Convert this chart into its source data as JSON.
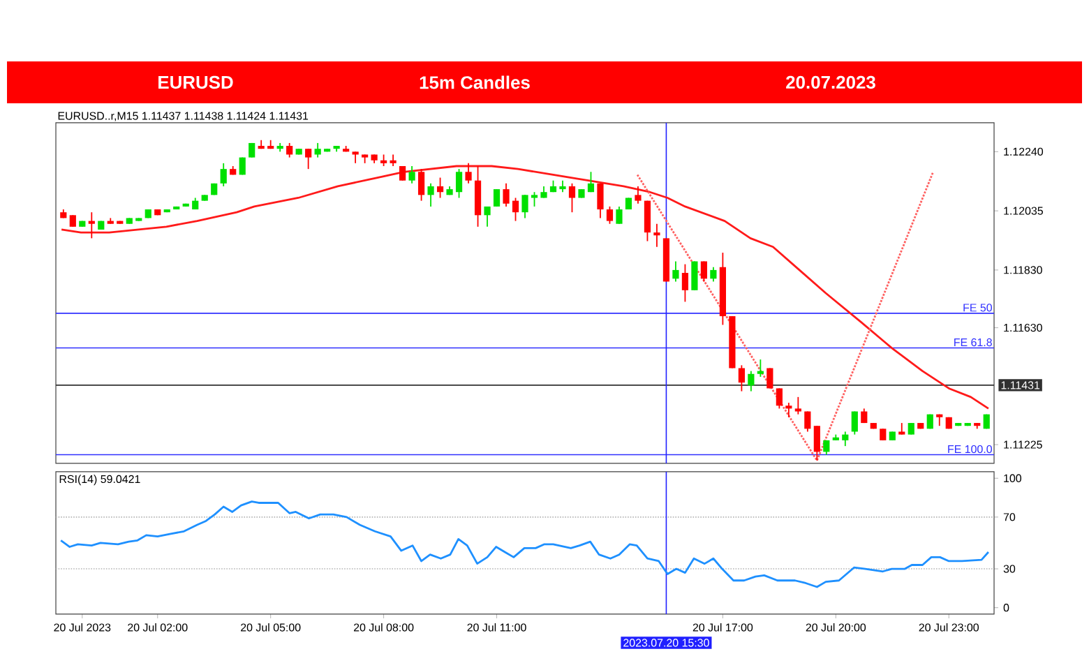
{
  "chart_data": [
    {
      "type": "candlestick",
      "title": "EURUSD",
      "subtitle": "15m Candles",
      "annotations": [
        "20.07.2023",
        "EURUSD..r,M15 1.11437 1.11438 1.11424 1.11431"
      ],
      "x": [
        "2023-07-19T23:30",
        "2023-07-19T23:45",
        "2023-07-20T00:00",
        "2023-07-20T00:15",
        "2023-07-20T00:30",
        "2023-07-20T00:45",
        "2023-07-20T01:00",
        "2023-07-20T01:15",
        "2023-07-20T01:30",
        "2023-07-20T01:45",
        "2023-07-20T02:00",
        "2023-07-20T02:15",
        "2023-07-20T02:30",
        "2023-07-20T02:45",
        "2023-07-20T03:00",
        "2023-07-20T03:15",
        "2023-07-20T03:30",
        "2023-07-20T03:45",
        "2023-07-20T04:00",
        "2023-07-20T04:15",
        "2023-07-20T04:30",
        "2023-07-20T04:45",
        "2023-07-20T05:00",
        "2023-07-20T05:15",
        "2023-07-20T05:30",
        "2023-07-20T05:45",
        "2023-07-20T06:00",
        "2023-07-20T06:15",
        "2023-07-20T06:30",
        "2023-07-20T06:45",
        "2023-07-20T07:00",
        "2023-07-20T07:15",
        "2023-07-20T07:30",
        "2023-07-20T07:45",
        "2023-07-20T08:00",
        "2023-07-20T08:15",
        "2023-07-20T08:30",
        "2023-07-20T08:45",
        "2023-07-20T09:00",
        "2023-07-20T09:15",
        "2023-07-20T09:30",
        "2023-07-20T09:45",
        "2023-07-20T10:00",
        "2023-07-20T10:15",
        "2023-07-20T10:30",
        "2023-07-20T10:45",
        "2023-07-20T11:00",
        "2023-07-20T11:15",
        "2023-07-20T11:30",
        "2023-07-20T11:45",
        "2023-07-20T12:00",
        "2023-07-20T12:15",
        "2023-07-20T12:30",
        "2023-07-20T12:45",
        "2023-07-20T13:00",
        "2023-07-20T13:15",
        "2023-07-20T13:30",
        "2023-07-20T13:45",
        "2023-07-20T14:00",
        "2023-07-20T14:15",
        "2023-07-20T14:30",
        "2023-07-20T14:45",
        "2023-07-20T15:00",
        "2023-07-20T15:15",
        "2023-07-20T15:30",
        "2023-07-20T15:45",
        "2023-07-20T16:00",
        "2023-07-20T16:15",
        "2023-07-20T16:30",
        "2023-07-20T16:45",
        "2023-07-20T17:00",
        "2023-07-20T17:15",
        "2023-07-20T17:30",
        "2023-07-20T17:45",
        "2023-07-20T18:00",
        "2023-07-20T18:15",
        "2023-07-20T18:30",
        "2023-07-20T18:45",
        "2023-07-20T19:00",
        "2023-07-20T19:15",
        "2023-07-20T19:30",
        "2023-07-20T19:45",
        "2023-07-20T20:00",
        "2023-07-20T20:15",
        "2023-07-20T20:30",
        "2023-07-20T20:45",
        "2023-07-20T21:00",
        "2023-07-20T21:15",
        "2023-07-20T21:30",
        "2023-07-20T21:45",
        "2023-07-20T22:00",
        "2023-07-20T22:15",
        "2023-07-20T22:30",
        "2023-07-20T22:45",
        "2023-07-20T23:00",
        "2023-07-20T23:15",
        "2023-07-20T23:30",
        "2023-07-20T23:45",
        "2023-07-21T00:00"
      ],
      "ohlc": [
        [
          1.1203,
          1.1204,
          1.1201,
          1.1201
        ],
        [
          1.1202,
          1.1202,
          1.1198,
          1.1198
        ],
        [
          1.1198,
          1.12,
          1.1198,
          1.12
        ],
        [
          1.12,
          1.1203,
          1.1194,
          1.1199
        ],
        [
          1.1197,
          1.12,
          1.1197,
          1.12
        ],
        [
          1.12,
          1.1201,
          1.1199,
          1.1199
        ],
        [
          1.12,
          1.12,
          1.1199,
          1.1199
        ],
        [
          1.1199,
          1.1201,
          1.1199,
          1.1201
        ],
        [
          1.12,
          1.1201,
          1.12,
          1.1201
        ],
        [
          1.1201,
          1.1204,
          1.1201,
          1.1204
        ],
        [
          1.1204,
          1.1204,
          1.1202,
          1.1202
        ],
        [
          1.1203,
          1.1204,
          1.1203,
          1.1204
        ],
        [
          1.1204,
          1.1205,
          1.1204,
          1.1205
        ],
        [
          1.1205,
          1.1206,
          1.1205,
          1.1206
        ],
        [
          1.1204,
          1.1208,
          1.1204,
          1.1207
        ],
        [
          1.1207,
          1.1209,
          1.1207,
          1.1209
        ],
        [
          1.1209,
          1.1213,
          1.1209,
          1.1213
        ],
        [
          1.1213,
          1.122,
          1.1212,
          1.1218
        ],
        [
          1.1218,
          1.1219,
          1.1216,
          1.1216
        ],
        [
          1.1216,
          1.1222,
          1.1216,
          1.1222
        ],
        [
          1.1222,
          1.1227,
          1.1222,
          1.1227
        ],
        [
          1.1226,
          1.1228,
          1.1225,
          1.1225
        ],
        [
          1.1226,
          1.1228,
          1.1225,
          1.1225
        ],
        [
          1.1225,
          1.1227,
          1.1224,
          1.1226
        ],
        [
          1.1226,
          1.1227,
          1.1222,
          1.1223
        ],
        [
          1.1223,
          1.1225,
          1.1223,
          1.1225
        ],
        [
          1.1225,
          1.1225,
          1.1218,
          1.1222
        ],
        [
          1.1223,
          1.1227,
          1.1222,
          1.1225
        ],
        [
          1.1224,
          1.1225,
          1.1224,
          1.1225
        ],
        [
          1.1225,
          1.1226,
          1.1224,
          1.1226
        ],
        [
          1.1225,
          1.1226,
          1.1224,
          1.1224
        ],
        [
          1.1224,
          1.1224,
          1.122,
          1.1223
        ],
        [
          1.1223,
          1.1223,
          1.122,
          1.1222
        ],
        [
          1.1223,
          1.1223,
          1.122,
          1.1221
        ],
        [
          1.1221,
          1.1223,
          1.1219,
          1.122
        ],
        [
          1.1221,
          1.1223,
          1.1219,
          1.122
        ],
        [
          1.1219,
          1.1219,
          1.1214,
          1.1214
        ],
        [
          1.1214,
          1.1219,
          1.1213,
          1.1217
        ],
        [
          1.1217,
          1.1218,
          1.1207,
          1.1209
        ],
        [
          1.1209,
          1.1213,
          1.1205,
          1.1212
        ],
        [
          1.1212,
          1.1215,
          1.1208,
          1.121
        ],
        [
          1.1209,
          1.1212,
          1.1209,
          1.1211
        ],
        [
          1.121,
          1.1218,
          1.1208,
          1.1217
        ],
        [
          1.1217,
          1.122,
          1.1213,
          1.1214
        ],
        [
          1.1214,
          1.1219,
          1.1198,
          1.1202
        ],
        [
          1.1202,
          1.1205,
          1.1198,
          1.1205
        ],
        [
          1.1205,
          1.1211,
          1.1205,
          1.1211
        ],
        [
          1.1211,
          1.1213,
          1.1205,
          1.1206
        ],
        [
          1.1207,
          1.1208,
          1.12,
          1.1203
        ],
        [
          1.1203,
          1.1209,
          1.1201,
          1.1209
        ],
        [
          1.1208,
          1.121,
          1.1205,
          1.1209
        ],
        [
          1.1208,
          1.1212,
          1.1208,
          1.121
        ],
        [
          1.121,
          1.1214,
          1.121,
          1.1212
        ],
        [
          1.1211,
          1.1214,
          1.121,
          1.1212
        ],
        [
          1.1212,
          1.1213,
          1.1203,
          1.1208
        ],
        [
          1.1208,
          1.1211,
          1.1208,
          1.1211
        ],
        [
          1.121,
          1.1217,
          1.121,
          1.1213
        ],
        [
          1.1213,
          1.1213,
          1.1201,
          1.1204
        ],
        [
          1.1204,
          1.1205,
          1.1199,
          1.12
        ],
        [
          1.1199,
          1.1205,
          1.1199,
          1.1204
        ],
        [
          1.1204,
          1.1208,
          1.1204,
          1.1208
        ],
        [
          1.1209,
          1.1212,
          1.1206,
          1.1207
        ],
        [
          1.1207,
          1.1207,
          1.1193,
          1.1196
        ],
        [
          1.1196,
          1.1199,
          1.1191,
          1.1195
        ],
        [
          1.1194,
          1.1194,
          1.1179,
          1.1179
        ],
        [
          1.118,
          1.1186,
          1.1179,
          1.1183
        ],
        [
          1.1182,
          1.1185,
          1.1172,
          1.1176
        ],
        [
          1.1176,
          1.1186,
          1.1176,
          1.1186
        ],
        [
          1.1186,
          1.1186,
          1.1179,
          1.118
        ],
        [
          1.118,
          1.1184,
          1.1179,
          1.1183
        ],
        [
          1.1184,
          1.1189,
          1.1164,
          1.1167
        ],
        [
          1.1167,
          1.1167,
          1.1149,
          1.1149
        ],
        [
          1.1149,
          1.115,
          1.1141,
          1.1144
        ],
        [
          1.1143,
          1.1148,
          1.1141,
          1.1147
        ],
        [
          1.1147,
          1.1152,
          1.1146,
          1.1148
        ],
        [
          1.1149,
          1.1149,
          1.1142,
          1.1142
        ],
        [
          1.1142,
          1.1142,
          1.1135,
          1.1136
        ],
        [
          1.1136,
          1.1137,
          1.1132,
          1.1135
        ],
        [
          1.1135,
          1.1139,
          1.1133,
          1.1134
        ],
        [
          1.1134,
          1.1134,
          1.1127,
          1.1128
        ],
        [
          1.1129,
          1.1129,
          1.1117,
          1.112
        ],
        [
          1.112,
          1.1124,
          1.1119,
          1.1124
        ],
        [
          1.1124,
          1.1126,
          1.1124,
          1.1125
        ],
        [
          1.1124,
          1.1127,
          1.1122,
          1.1126
        ],
        [
          1.1127,
          1.1134,
          1.1126,
          1.1134
        ],
        [
          1.1134,
          1.1135,
          1.113,
          1.113
        ],
        [
          1.113,
          1.113,
          1.1128,
          1.1128
        ],
        [
          1.1128,
          1.1128,
          1.1124,
          1.1124
        ],
        [
          1.1124,
          1.1127,
          1.1124,
          1.1127
        ],
        [
          1.1127,
          1.113,
          1.1126,
          1.1126
        ],
        [
          1.1126,
          1.113,
          1.1126,
          1.113
        ],
        [
          1.113,
          1.113,
          1.1128,
          1.1128
        ],
        [
          1.1128,
          1.1133,
          1.1128,
          1.1133
        ],
        [
          1.1133,
          1.1133,
          1.1129,
          1.1132
        ],
        [
          1.1132,
          1.1132,
          1.1128,
          1.1128
        ],
        [
          1.1129,
          1.113,
          1.1129,
          1.113
        ],
        [
          1.1129,
          1.113,
          1.1129,
          1.113
        ],
        [
          1.113,
          1.113,
          1.1128,
          1.1129
        ],
        [
          1.1128,
          1.1133,
          1.1128,
          1.1133
        ]
      ],
      "series": [
        {
          "type": "line",
          "color": "#ff1a1a",
          "x": [
            "2023-07-19T23:27",
            "2023-07-19T23:58",
            "2023-07-20T00:43",
            "2023-07-20T02:14",
            "2023-07-20T03:03",
            "2023-07-20T04:06",
            "2023-07-20T04:34",
            "2023-07-20T05:44",
            "2023-07-20T06:47",
            "2023-07-20T07:50",
            "2023-07-20T08:32",
            "2023-07-20T09:56",
            "2023-07-20T10:52",
            "2023-07-20T11:34",
            "2023-07-20T12:30",
            "2023-07-20T13:26",
            "2023-07-20T14:22",
            "2023-07-20T15:04",
            "2023-07-20T15:32",
            "2023-07-20T16:00",
            "2023-07-20T17:03",
            "2023-07-20T17:44",
            "2023-07-20T18:20",
            "2023-07-20T19:02",
            "2023-07-20T19:44",
            "2023-07-20T20:40",
            "2023-07-20T21:29",
            "2023-07-20T22:18",
            "2023-07-20T23:00",
            "2023-07-20T23:35",
            "2023-07-21T00:03"
          ],
          "values": [
            1.1197,
            1.1196,
            1.1196,
            1.1198,
            1.12,
            1.1203,
            1.1205,
            1.1208,
            1.1212,
            1.1215,
            1.1217,
            1.1219,
            1.1219,
            1.1218,
            1.1216,
            1.1214,
            1.1212,
            1.121,
            1.1208,
            1.1205,
            1.12,
            1.1194,
            1.1191,
            1.1183,
            1.1175,
            1.1165,
            1.1156,
            1.1148,
            1.1142,
            1.1139,
            1.1135
          ]
        },
        {
          "type": "line",
          "color": "#ff6060",
          "line_style": "dotted",
          "x": [
            "2023-07-20T14:44",
            "2023-07-20T19:30",
            "2023-07-20T22:35"
          ],
          "values": [
            1.1216,
            1.1117,
            1.1217
          ]
        }
      ],
      "ref_lines": [
        {
          "axis": "y",
          "value": 1.1168,
          "label": "FE 50",
          "color": "#3030ff"
        },
        {
          "axis": "y",
          "value": 1.1156,
          "label": "FE 61.8",
          "color": "#3030ff"
        },
        {
          "axis": "y",
          "value": 1.1119,
          "label": "FE 100.0",
          "color": "#3030ff"
        },
        {
          "axis": "y",
          "value": 1.11431,
          "label": "1.11431",
          "color": "#303030"
        },
        {
          "axis": "x",
          "value": "2023-07-20T15:30",
          "color": "#2020ff"
        }
      ],
      "xlim": [
        "2023-07-19T23:18",
        "2023-07-21T00:12"
      ],
      "ylim": [
        1.1116,
        1.1234
      ],
      "yticks": [
        {
          "value": 1.1224,
          "label": "1.12240"
        },
        1.12035,
        {
          "value": 1.1183,
          "label": "1.11830"
        },
        {
          "value": 1.1163,
          "label": "1.11630"
        },
        1.11225
      ],
      "tick_labels": "y"
    },
    {
      "type": "line",
      "annotations": [
        "RSI(14) 59.0421"
      ],
      "series": [
        {
          "color": "#1e90ff",
          "x": [
            "2023-07-19T23:26",
            "2023-07-19T23:40",
            "2023-07-19T23:53",
            "2023-07-20T00:15",
            "2023-07-20T00:29",
            "2023-07-20T00:57",
            "2023-07-20T01:14",
            "2023-07-20T01:28",
            "2023-07-20T01:42",
            "2023-07-20T02:00",
            "2023-07-20T02:21",
            "2023-07-20T02:42",
            "2023-07-20T03:03",
            "2023-07-20T03:17",
            "2023-07-20T03:31",
            "2023-07-20T03:45",
            "2023-07-20T03:59",
            "2023-07-20T04:13",
            "2023-07-20T04:30",
            "2023-07-20T04:41",
            "2023-07-20T05:12",
            "2023-07-20T05:30",
            "2023-07-20T05:40",
            "2023-07-20T06:01",
            "2023-07-20T06:19",
            "2023-07-20T06:40",
            "2023-07-20T07:01",
            "2023-07-20T07:22",
            "2023-07-20T07:46",
            "2023-07-20T08:11",
            "2023-07-20T08:28",
            "2023-07-20T08:46",
            "2023-07-20T09:00",
            "2023-07-20T09:14",
            "2023-07-20T09:31",
            "2023-07-20T09:46",
            "2023-07-20T09:59",
            "2023-07-20T10:13",
            "2023-07-20T10:29",
            "2023-07-20T10:45",
            "2023-07-20T10:59",
            "2023-07-20T11:13",
            "2023-07-20T11:27",
            "2023-07-20T11:44",
            "2023-07-20T12:02",
            "2023-07-20T12:16",
            "2023-07-20T12:30",
            "2023-07-20T12:58",
            "2023-07-20T13:12",
            "2023-07-20T13:29",
            "2023-07-20T13:43",
            "2023-07-20T14:01",
            "2023-07-20T14:15",
            "2023-07-20T14:32",
            "2023-07-20T14:43",
            "2023-07-20T15:00",
            "2023-07-20T15:18",
            "2023-07-20T15:32",
            "2023-07-20T15:46",
            "2023-07-20T16:00",
            "2023-07-20T16:14",
            "2023-07-20T16:31",
            "2023-07-20T16:45",
            "2023-07-20T16:59",
            "2023-07-20T17:17",
            "2023-07-20T17:34",
            "2023-07-20T17:52",
            "2023-07-20T18:06",
            "2023-07-20T18:27",
            "2023-07-20T18:55",
            "2023-07-20T19:12",
            "2023-07-20T19:30",
            "2023-07-20T19:44",
            "2023-07-20T20:05",
            "2023-07-20T20:29",
            "2023-07-20T20:47",
            "2023-07-20T21:15",
            "2023-07-20T21:29",
            "2023-07-20T21:50",
            "2023-07-20T22:01",
            "2023-07-20T22:18",
            "2023-07-20T22:32",
            "2023-07-20T22:46",
            "2023-07-20T23:00",
            "2023-07-20T23:21",
            "2023-07-20T23:52",
            "2023-07-21T00:03"
          ],
          "values": [
            52,
            47,
            49,
            48,
            50,
            49,
            51,
            52,
            56,
            55,
            57,
            59,
            64,
            67,
            72,
            78,
            74,
            79,
            82,
            81,
            81,
            73,
            74,
            69,
            72,
            72,
            70,
            64,
            59,
            55,
            44,
            48,
            36,
            41,
            38,
            41,
            53,
            48,
            34,
            39,
            47,
            43,
            39,
            46,
            46,
            49,
            49,
            46,
            48,
            51,
            41,
            38,
            41,
            49,
            48,
            38,
            36,
            26,
            30,
            27,
            38,
            34,
            38,
            30,
            21,
            21,
            24,
            25,
            21,
            21,
            19,
            16,
            20,
            21,
            31,
            30,
            28,
            30,
            30,
            33,
            33,
            39,
            39,
            36,
            36,
            37,
            43
          ]
        }
      ],
      "ref_lines": [
        {
          "axis": "y",
          "value": 70,
          "color": "#b4b4b4",
          "line_style": "dotted"
        },
        {
          "axis": "y",
          "value": 30,
          "color": "#b4b4b4",
          "line_style": "dotted"
        },
        {
          "axis": "x",
          "value": "2023-07-20T15:30",
          "label": "2023.07.20 15:30",
          "color": "#2020ff"
        }
      ],
      "xlim": [
        "2023-07-19T23:18",
        "2023-07-21T00:12"
      ],
      "ylim": [
        -5,
        105
      ],
      "xticks": [
        {
          "value": "2023-07-20T00:00",
          "label": "20 Jul 2023"
        },
        {
          "value": "2023-07-20T02:00",
          "label": "20 Jul 02:00"
        },
        {
          "value": "2023-07-20T05:00",
          "label": "20 Jul 05:00"
        },
        {
          "value": "2023-07-20T08:00",
          "label": "20 Jul 08:00"
        },
        {
          "value": "2023-07-20T11:00",
          "label": "20 Jul 11:00"
        },
        {
          "value": "2023-07-20T17:00",
          "label": "20 Jul 17:00"
        },
        {
          "value": "2023-07-20T20:00",
          "label": "20 Jul 20:00"
        },
        {
          "value": "2023-07-20T23:00",
          "label": "20 Jul 23:00"
        }
      ],
      "yticks": [
        0,
        30,
        70,
        100
      ]
    }
  ]
}
